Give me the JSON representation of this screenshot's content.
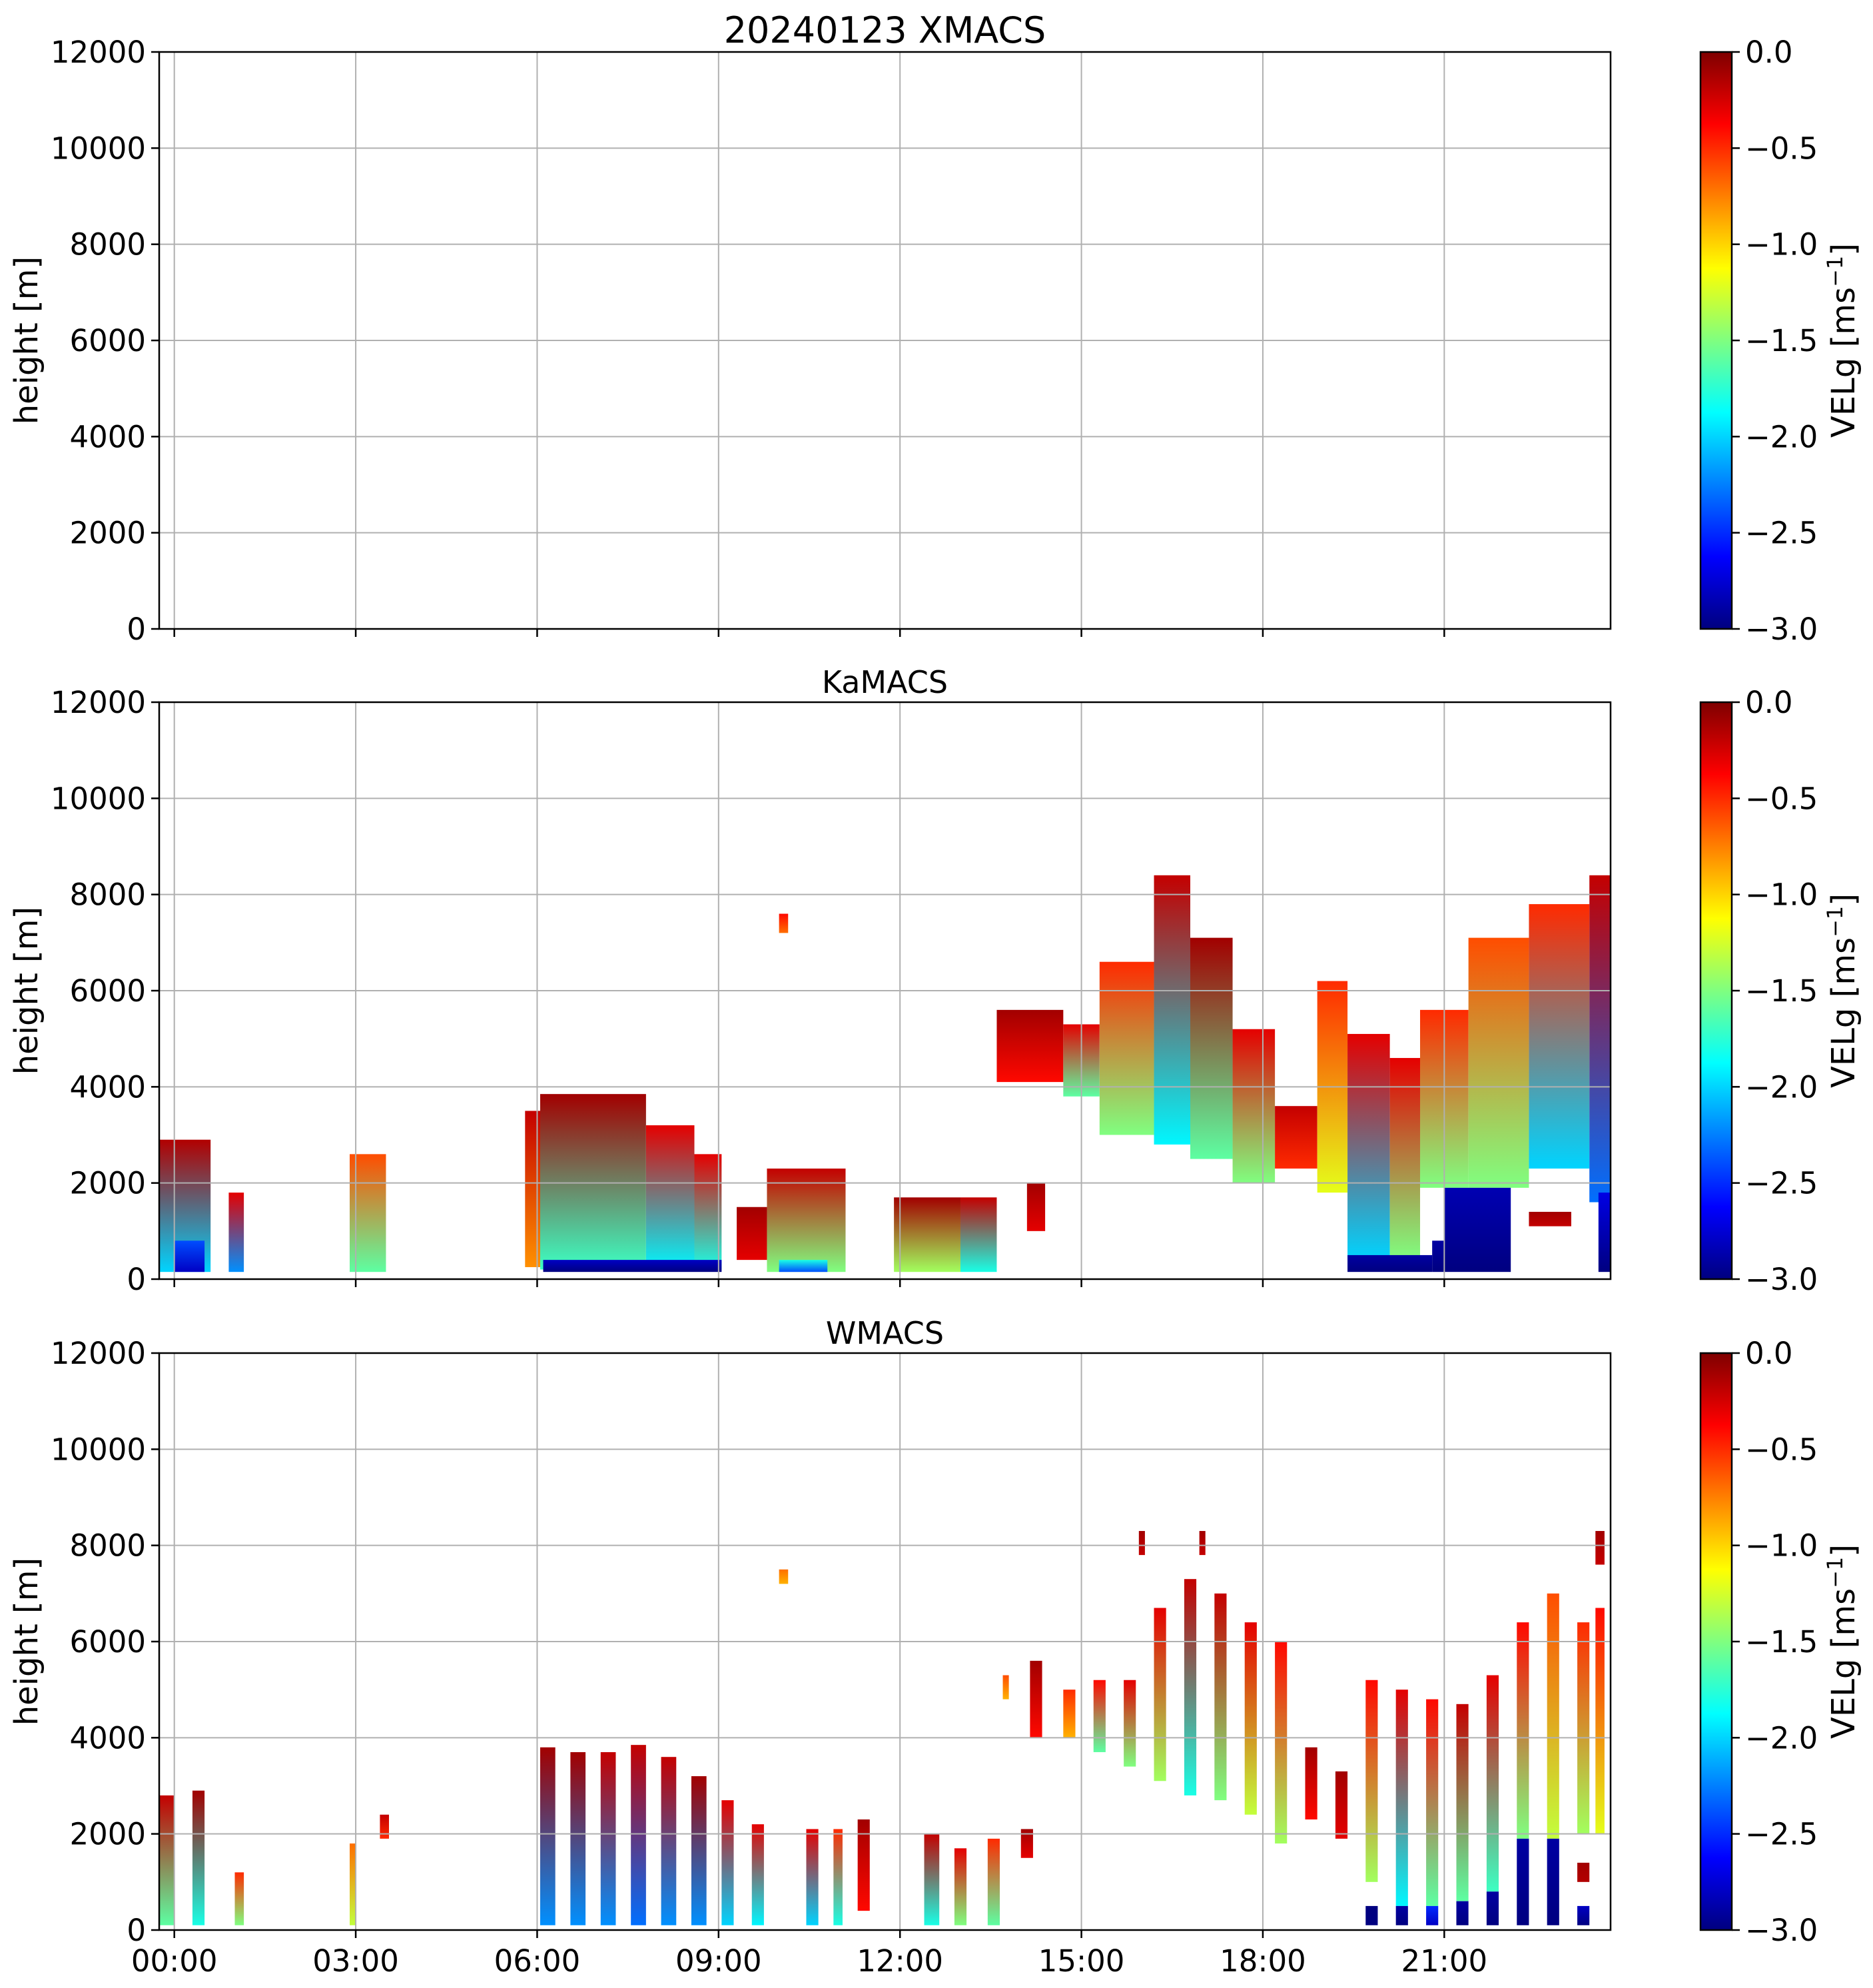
{
  "chart_data": [
    {
      "type": "heatmap",
      "title": "20240123 XMACS",
      "ylabel": "height [m]",
      "xlabel": "",
      "ylim": [
        0,
        12000
      ],
      "xlim_hours": [
        -0.25,
        23.75
      ],
      "yticks": [
        "0",
        "2000",
        "4000",
        "6000",
        "8000",
        "10000",
        "12000"
      ],
      "xticks": [
        "00:00",
        "03:00",
        "06:00",
        "09:00",
        "12:00",
        "15:00",
        "18:00",
        "21:00"
      ],
      "xtick_hours": [
        0,
        3,
        6,
        9,
        12,
        15,
        18,
        21
      ],
      "show_xticklabels": false,
      "grid": true,
      "colorbar": {
        "label": "VELg [ms",
        "label_sup": "−1",
        "label_end": "]",
        "range": [
          -3.0,
          0.0
        ],
        "ticks": [
          "0.0",
          "−0.5",
          "−1.0",
          "−1.5",
          "−2.0",
          "−2.5",
          "−3.0"
        ],
        "colormap": "jet"
      },
      "blocks": []
    },
    {
      "type": "heatmap",
      "title": "KaMACS",
      "ylabel": "height [m]",
      "xlabel": "",
      "ylim": [
        0,
        12000
      ],
      "xlim_hours": [
        -0.25,
        23.75
      ],
      "yticks": [
        "0",
        "2000",
        "4000",
        "6000",
        "8000",
        "10000",
        "12000"
      ],
      "xticks": [
        "00:00",
        "03:00",
        "06:00",
        "09:00",
        "12:00",
        "15:00",
        "18:00",
        "21:00"
      ],
      "xtick_hours": [
        0,
        3,
        6,
        9,
        12,
        15,
        18,
        21
      ],
      "show_xticklabels": false,
      "grid": true,
      "colorbar": {
        "label": "VELg [ms",
        "label_sup": "−1",
        "label_end": "]",
        "range": [
          -3.0,
          0.0
        ],
        "ticks": [
          "0.0",
          "−0.5",
          "−1.0",
          "−1.5",
          "−2.0",
          "−2.5",
          "−3.0"
        ],
        "colormap": "jet"
      },
      "blocks": [
        {
          "t0": -0.25,
          "t1": 0.6,
          "h0": 150,
          "h1": 2900,
          "v_top": -0.15,
          "v_bot": -2.0
        },
        {
          "t0": 0.0,
          "t1": 0.5,
          "h0": 150,
          "h1": 800,
          "v_top": -2.4,
          "v_bot": -2.8
        },
        {
          "t0": 0.9,
          "t1": 1.15,
          "h0": 150,
          "h1": 1800,
          "v_top": -0.3,
          "v_bot": -2.2
        },
        {
          "t0": 2.9,
          "t1": 3.5,
          "h0": 150,
          "h1": 2600,
          "v_top": -0.6,
          "v_bot": -1.6
        },
        {
          "t0": 5.8,
          "t1": 6.05,
          "h0": 250,
          "h1": 3500,
          "v_top": -0.2,
          "v_bot": -0.8
        },
        {
          "t0": 6.05,
          "t1": 7.8,
          "h0": 200,
          "h1": 3850,
          "v_top": -0.1,
          "v_bot": -1.7
        },
        {
          "t0": 7.8,
          "t1": 8.6,
          "h0": 200,
          "h1": 3200,
          "v_top": -0.3,
          "v_bot": -1.9
        },
        {
          "t0": 8.6,
          "t1": 9.05,
          "h0": 200,
          "h1": 2600,
          "v_top": -0.3,
          "v_bot": -1.8
        },
        {
          "t0": 6.1,
          "t1": 9.05,
          "h0": 150,
          "h1": 400,
          "v_top": -2.8,
          "v_bot": -3.0
        },
        {
          "t0": 9.3,
          "t1": 9.8,
          "h0": 400,
          "h1": 1500,
          "v_top": -0.1,
          "v_bot": -0.3
        },
        {
          "t0": 9.8,
          "t1": 11.1,
          "h0": 150,
          "h1": 2300,
          "v_top": -0.2,
          "v_bot": -1.5
        },
        {
          "t0": 10.0,
          "t1": 10.8,
          "h0": 150,
          "h1": 400,
          "v_top": -1.8,
          "v_bot": -2.4
        },
        {
          "t0": 10.0,
          "t1": 10.15,
          "h0": 7200,
          "h1": 7600,
          "v_top": -0.4,
          "v_bot": -0.7
        },
        {
          "t0": 11.9,
          "t1": 13.0,
          "h0": 150,
          "h1": 1700,
          "v_top": -0.1,
          "v_bot": -1.4
        },
        {
          "t0": 13.0,
          "t1": 13.6,
          "h0": 150,
          "h1": 1700,
          "v_top": -0.2,
          "v_bot": -1.8
        },
        {
          "t0": 14.1,
          "t1": 14.4,
          "h0": 1000,
          "h1": 2000,
          "v_top": -0.1,
          "v_bot": -0.3
        },
        {
          "t0": 13.6,
          "t1": 14.7,
          "h0": 4100,
          "h1": 5600,
          "v_top": -0.1,
          "v_bot": -0.4
        },
        {
          "t0": 14.7,
          "t1": 15.3,
          "h0": 3800,
          "h1": 5300,
          "v_top": -0.3,
          "v_bot": -1.6
        },
        {
          "t0": 15.3,
          "t1": 16.2,
          "h0": 3000,
          "h1": 6600,
          "v_top": -0.5,
          "v_bot": -1.5
        },
        {
          "t0": 16.2,
          "t1": 16.8,
          "h0": 2800,
          "h1": 8400,
          "v_top": -0.2,
          "v_bot": -1.9
        },
        {
          "t0": 16.8,
          "t1": 17.5,
          "h0": 2500,
          "h1": 7100,
          "v_top": -0.1,
          "v_bot": -1.6
        },
        {
          "t0": 17.5,
          "t1": 18.2,
          "h0": 2000,
          "h1": 5200,
          "v_top": -0.3,
          "v_bot": -1.5
        },
        {
          "t0": 18.2,
          "t1": 18.9,
          "h0": 2300,
          "h1": 3600,
          "v_top": -0.2,
          "v_bot": -0.5
        },
        {
          "t0": 18.9,
          "t1": 19.4,
          "h0": 1800,
          "h1": 6200,
          "v_top": -0.5,
          "v_bot": -1.2
        },
        {
          "t0": 19.4,
          "t1": 20.1,
          "h0": 400,
          "h1": 5100,
          "v_top": -0.3,
          "v_bot": -2.0
        },
        {
          "t0": 20.1,
          "t1": 20.6,
          "h0": 400,
          "h1": 4600,
          "v_top": -0.3,
          "v_bot": -1.5
        },
        {
          "t0": 20.6,
          "t1": 21.4,
          "h0": 1900,
          "h1": 5600,
          "v_top": -0.5,
          "v_bot": -1.5
        },
        {
          "t0": 21.4,
          "t1": 22.4,
          "h0": 1900,
          "h1": 7100,
          "v_top": -0.6,
          "v_bot": -1.5
        },
        {
          "t0": 22.4,
          "t1": 23.4,
          "h0": 2300,
          "h1": 7800,
          "v_top": -0.5,
          "v_bot": -2.0
        },
        {
          "t0": 23.4,
          "t1": 23.75,
          "h0": 1600,
          "h1": 8400,
          "v_top": -0.2,
          "v_bot": -2.3
        },
        {
          "t0": 19.4,
          "t1": 20.8,
          "h0": 150,
          "h1": 500,
          "v_top": -2.9,
          "v_bot": -3.0
        },
        {
          "t0": 20.8,
          "t1": 21.0,
          "h0": 150,
          "h1": 800,
          "v_top": -2.9,
          "v_bot": -3.0
        },
        {
          "t0": 21.0,
          "t1": 22.1,
          "h0": 150,
          "h1": 1900,
          "v_top": -2.85,
          "v_bot": -3.0
        },
        {
          "t0": 22.4,
          "t1": 23.1,
          "h0": 1100,
          "h1": 1400,
          "v_top": -0.1,
          "v_bot": -0.2
        },
        {
          "t0": 23.55,
          "t1": 23.75,
          "h0": 150,
          "h1": 1800,
          "v_top": -2.7,
          "v_bot": -3.0
        }
      ]
    },
    {
      "type": "heatmap",
      "title": "WMACS",
      "ylabel": "height [m]",
      "xlabel": "",
      "ylim": [
        0,
        12000
      ],
      "xlim_hours": [
        -0.25,
        23.75
      ],
      "yticks": [
        "0",
        "2000",
        "4000",
        "6000",
        "8000",
        "10000",
        "12000"
      ],
      "xticks": [
        "00:00",
        "03:00",
        "06:00",
        "09:00",
        "12:00",
        "15:00",
        "18:00",
        "21:00"
      ],
      "xtick_hours": [
        0,
        3,
        6,
        9,
        12,
        15,
        18,
        21
      ],
      "show_xticklabels": true,
      "grid": true,
      "colorbar": {
        "label": "VELg [ms",
        "label_sup": "−1",
        "label_end": "]",
        "range": [
          -3.0,
          0.0
        ],
        "ticks": [
          "0.0",
          "−0.5",
          "−1.0",
          "−1.5",
          "−2.0",
          "−2.5",
          "−3.0"
        ],
        "colormap": "jet"
      },
      "blocks": [
        {
          "t0": -0.25,
          "t1": 0.0,
          "h0": 100,
          "h1": 2800,
          "v_top": -0.2,
          "v_bot": -1.6
        },
        {
          "t0": 0.3,
          "t1": 0.5,
          "h0": 100,
          "h1": 2900,
          "v_top": -0.1,
          "v_bot": -1.8
        },
        {
          "t0": 1.0,
          "t1": 1.15,
          "h0": 100,
          "h1": 1200,
          "v_top": -0.5,
          "v_bot": -1.5
        },
        {
          "t0": 2.9,
          "t1": 3.0,
          "h0": 100,
          "h1": 1800,
          "v_top": -0.7,
          "v_bot": -1.3
        },
        {
          "t0": 3.4,
          "t1": 3.55,
          "h0": 1900,
          "h1": 2400,
          "v_top": -0.2,
          "v_bot": -0.5
        },
        {
          "t0": 6.05,
          "t1": 6.3,
          "h0": 100,
          "h1": 3800,
          "v_top": -0.1,
          "v_bot": -2.2
        },
        {
          "t0": 6.55,
          "t1": 6.8,
          "h0": 100,
          "h1": 3700,
          "v_top": -0.1,
          "v_bot": -2.2
        },
        {
          "t0": 7.05,
          "t1": 7.3,
          "h0": 100,
          "h1": 3700,
          "v_top": -0.2,
          "v_bot": -2.2
        },
        {
          "t0": 7.55,
          "t1": 7.8,
          "h0": 100,
          "h1": 3850,
          "v_top": -0.2,
          "v_bot": -2.3
        },
        {
          "t0": 8.05,
          "t1": 8.3,
          "h0": 100,
          "h1": 3600,
          "v_top": -0.2,
          "v_bot": -2.2
        },
        {
          "t0": 8.55,
          "t1": 8.8,
          "h0": 100,
          "h1": 3200,
          "v_top": -0.1,
          "v_bot": -2.2
        },
        {
          "t0": 9.05,
          "t1": 9.25,
          "h0": 100,
          "h1": 2700,
          "v_top": -0.3,
          "v_bot": -2.0
        },
        {
          "t0": 9.55,
          "t1": 9.75,
          "h0": 100,
          "h1": 2200,
          "v_top": -0.3,
          "v_bot": -1.9
        },
        {
          "t0": 10.0,
          "t1": 10.15,
          "h0": 7200,
          "h1": 7500,
          "v_top": -0.7,
          "v_bot": -0.9
        },
        {
          "t0": 10.45,
          "t1": 10.65,
          "h0": 100,
          "h1": 2100,
          "v_top": -0.3,
          "v_bot": -2.0
        },
        {
          "t0": 10.9,
          "t1": 11.05,
          "h0": 100,
          "h1": 2100,
          "v_top": -0.5,
          "v_bot": -1.8
        },
        {
          "t0": 11.3,
          "t1": 11.5,
          "h0": 400,
          "h1": 2300,
          "v_top": -0.1,
          "v_bot": -0.4
        },
        {
          "t0": 12.4,
          "t1": 12.65,
          "h0": 100,
          "h1": 2000,
          "v_top": -0.2,
          "v_bot": -1.8
        },
        {
          "t0": 12.9,
          "t1": 13.1,
          "h0": 100,
          "h1": 1700,
          "v_top": -0.3,
          "v_bot": -1.5
        },
        {
          "t0": 13.45,
          "t1": 13.65,
          "h0": 100,
          "h1": 1900,
          "v_top": -0.5,
          "v_bot": -1.6
        },
        {
          "t0": 14.0,
          "t1": 14.2,
          "h0": 1500,
          "h1": 2100,
          "v_top": -0.1,
          "v_bot": -0.3
        },
        {
          "t0": 13.7,
          "t1": 13.8,
          "h0": 4800,
          "h1": 5300,
          "v_top": -0.6,
          "v_bot": -0.9
        },
        {
          "t0": 14.15,
          "t1": 14.35,
          "h0": 4000,
          "h1": 5600,
          "v_top": -0.1,
          "v_bot": -0.4
        },
        {
          "t0": 14.7,
          "t1": 14.9,
          "h0": 4000,
          "h1": 5000,
          "v_top": -0.5,
          "v_bot": -0.9
        },
        {
          "t0": 15.2,
          "t1": 15.4,
          "h0": 3700,
          "h1": 5200,
          "v_top": -0.4,
          "v_bot": -1.6
        },
        {
          "t0": 15.7,
          "t1": 15.9,
          "h0": 3400,
          "h1": 5200,
          "v_top": -0.3,
          "v_bot": -1.5
        },
        {
          "t0": 15.95,
          "t1": 16.05,
          "h0": 7800,
          "h1": 8300,
          "v_top": -0.1,
          "v_bot": -0.2
        },
        {
          "t0": 16.2,
          "t1": 16.4,
          "h0": 3100,
          "h1": 6700,
          "v_top": -0.3,
          "v_bot": -1.4
        },
        {
          "t0": 16.7,
          "t1": 16.9,
          "h0": 2800,
          "h1": 7300,
          "v_top": -0.2,
          "v_bot": -1.8
        },
        {
          "t0": 16.95,
          "t1": 17.05,
          "h0": 7800,
          "h1": 8300,
          "v_top": -0.1,
          "v_bot": -0.2
        },
        {
          "t0": 17.2,
          "t1": 17.4,
          "h0": 2700,
          "h1": 7000,
          "v_top": -0.2,
          "v_bot": -1.5
        },
        {
          "t0": 17.7,
          "t1": 17.9,
          "h0": 2400,
          "h1": 6400,
          "v_top": -0.3,
          "v_bot": -1.3
        },
        {
          "t0": 18.2,
          "t1": 18.4,
          "h0": 1800,
          "h1": 6000,
          "v_top": -0.4,
          "v_bot": -1.4
        },
        {
          "t0": 18.7,
          "t1": 18.9,
          "h0": 2300,
          "h1": 3800,
          "v_top": -0.1,
          "v_bot": -0.4
        },
        {
          "t0": 19.2,
          "t1": 19.4,
          "h0": 1900,
          "h1": 3300,
          "v_top": -0.1,
          "v_bot": -0.3
        },
        {
          "t0": 19.7,
          "t1": 19.9,
          "h0": 1000,
          "h1": 5200,
          "v_top": -0.4,
          "v_bot": -1.4
        },
        {
          "t0": 20.2,
          "t1": 20.4,
          "h0": 500,
          "h1": 5000,
          "v_top": -0.3,
          "v_bot": -1.9
        },
        {
          "t0": 20.7,
          "t1": 20.9,
          "h0": 500,
          "h1": 4800,
          "v_top": -0.4,
          "v_bot": -1.6
        },
        {
          "t0": 21.2,
          "t1": 21.4,
          "h0": 600,
          "h1": 4700,
          "v_top": -0.2,
          "v_bot": -1.6
        },
        {
          "t0": 21.7,
          "t1": 21.9,
          "h0": 800,
          "h1": 5300,
          "v_top": -0.3,
          "v_bot": -1.7
        },
        {
          "t0": 22.2,
          "t1": 22.4,
          "h0": 1900,
          "h1": 6400,
          "v_top": -0.4,
          "v_bot": -1.5
        },
        {
          "t0": 22.7,
          "t1": 22.9,
          "h0": 1900,
          "h1": 7000,
          "v_top": -0.6,
          "v_bot": -1.3
        },
        {
          "t0": 23.2,
          "t1": 23.4,
          "h0": 2000,
          "h1": 6400,
          "v_top": -0.5,
          "v_bot": -1.4
        },
        {
          "t0": 23.5,
          "t1": 23.65,
          "h0": 2000,
          "h1": 6700,
          "v_top": -0.4,
          "v_bot": -1.2
        },
        {
          "t0": 23.5,
          "t1": 23.65,
          "h0": 7600,
          "h1": 8300,
          "v_top": -0.1,
          "v_bot": -0.2
        },
        {
          "t0": 19.7,
          "t1": 19.9,
          "h0": 100,
          "h1": 500,
          "v_top": -3.0,
          "v_bot": -3.0
        },
        {
          "t0": 20.2,
          "t1": 20.4,
          "h0": 100,
          "h1": 500,
          "v_top": -2.9,
          "v_bot": -3.0
        },
        {
          "t0": 20.7,
          "t1": 20.9,
          "h0": 100,
          "h1": 500,
          "v_top": -2.5,
          "v_bot": -2.8
        },
        {
          "t0": 21.2,
          "t1": 21.4,
          "h0": 100,
          "h1": 600,
          "v_top": -2.9,
          "v_bot": -3.0
        },
        {
          "t0": 21.7,
          "t1": 21.9,
          "h0": 100,
          "h1": 800,
          "v_top": -2.9,
          "v_bot": -3.0
        },
        {
          "t0": 22.2,
          "t1": 22.4,
          "h0": 100,
          "h1": 1900,
          "v_top": -2.9,
          "v_bot": -3.0
        },
        {
          "t0": 22.7,
          "t1": 22.9,
          "h0": 100,
          "h1": 1900,
          "v_top": -2.9,
          "v_bot": -3.0
        },
        {
          "t0": 23.2,
          "t1": 23.4,
          "h0": 100,
          "h1": 500,
          "v_top": -2.8,
          "v_bot": -3.0
        },
        {
          "t0": 23.2,
          "t1": 23.4,
          "h0": 1000,
          "h1": 1400,
          "v_top": -0.1,
          "v_bot": -0.15
        }
      ]
    }
  ]
}
